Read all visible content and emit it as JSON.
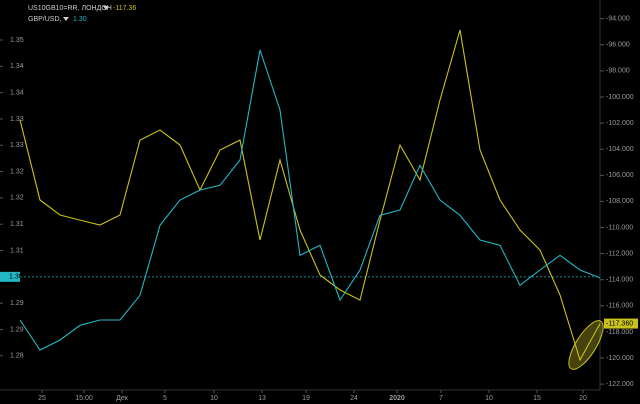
{
  "chart_data": {
    "type": "line",
    "x": [
      0,
      1,
      2,
      3,
      4,
      5,
      6,
      7,
      8,
      9,
      10,
      11,
      12,
      13,
      14,
      15,
      16,
      17,
      18,
      19,
      20,
      21,
      22,
      23,
      24,
      25,
      26,
      27,
      28,
      29
    ],
    "xlim": [
      0,
      29
    ],
    "xticks": [
      {
        "value": 1.1,
        "label": "25"
      },
      {
        "value": 3.2,
        "label": "15:00"
      },
      {
        "value": 5.1,
        "label": "Дек"
      },
      {
        "value": 7.25,
        "label": "5"
      },
      {
        "value": 9.7,
        "label": "10"
      },
      {
        "value": 12.1,
        "label": "13"
      },
      {
        "value": 14.3,
        "label": "19"
      },
      {
        "value": 16.7,
        "label": "24"
      },
      {
        "value": 18.85,
        "label": "2020"
      },
      {
        "value": 21.05,
        "label": "7"
      },
      {
        "value": 23.45,
        "label": "10"
      },
      {
        "value": 25.85,
        "label": "15"
      },
      {
        "value": 28.15,
        "label": "20"
      }
    ],
    "ylim": [
      1.2785,
      1.3526
    ],
    "yticks": [
      {
        "value": 1.345,
        "label": "1.35"
      },
      {
        "value": 1.34,
        "label": "1.34"
      },
      {
        "value": 1.335,
        "label": "1.34"
      },
      {
        "value": 1.33,
        "label": "1.33"
      },
      {
        "value": 1.325,
        "label": "1.33"
      },
      {
        "value": 1.32,
        "label": "1.32"
      },
      {
        "value": 1.315,
        "label": "1.32"
      },
      {
        "value": 1.31,
        "label": "1.31"
      },
      {
        "value": 1.305,
        "label": "1.31"
      },
      {
        "value": 1.295,
        "label": "1.29"
      },
      {
        "value": 1.29,
        "label": "1.29"
      },
      {
        "value": 1.285,
        "label": "1.28"
      }
    ],
    "y2lim": [
      -122.45,
      -92.57
    ],
    "y2ticks": [
      -94,
      -96,
      -98,
      -100,
      -102,
      -104,
      -106,
      -108,
      -110,
      -112,
      -114,
      -116,
      -118,
      -120,
      -122
    ],
    "y2tick_labels": [
      "-94.000",
      "-96.000",
      "-98.000",
      "-100.000",
      "-102.000",
      "-104.000",
      "-106.000",
      "-108.000",
      "-110.000",
      "-112.000",
      "-114.000",
      "-116.000",
      "-118.000",
      "-120.000",
      "-122.000"
    ],
    "series": [
      {
        "name": "US10GB10=RR, ЛОНДОН",
        "color": "#c9c21c",
        "axis": "y2",
        "current": {
          "value": -117.36,
          "label": "-117.36",
          "marker_label": "-117.360"
        },
        "values": [
          -101.76,
          -107.89,
          -109.04,
          -109.43,
          -109.81,
          -109.04,
          -103.3,
          -102.53,
          -103.68,
          -107.13,
          -104.06,
          -103.3,
          -110.96,
          -104.83,
          -110.19,
          -113.64,
          -114.79,
          -115.56,
          -109.43,
          -103.68,
          -106.36,
          -100.23,
          -94.87,
          -104.06,
          -107.89,
          -110.19,
          -111.73,
          -115.17,
          -120.15,
          -117.36
        ]
      },
      {
        "name": "GBP/USD,",
        "color": "#22b8c4",
        "current": {
          "value": 1.3,
          "label": "1.30"
        },
        "values": [
          1.2918,
          1.2861,
          1.288,
          1.2908,
          1.2918,
          1.2918,
          1.2965,
          1.3098,
          1.3146,
          1.3165,
          1.3174,
          1.3222,
          1.3431,
          1.3317,
          1.3041,
          1.306,
          1.2956,
          1.3013,
          1.3117,
          1.3127,
          1.3212,
          1.3146,
          1.3117,
          1.307,
          1.306,
          1.2984,
          1.3013,
          1.3041,
          1.3013,
          1.2998
        ]
      }
    ]
  }
}
